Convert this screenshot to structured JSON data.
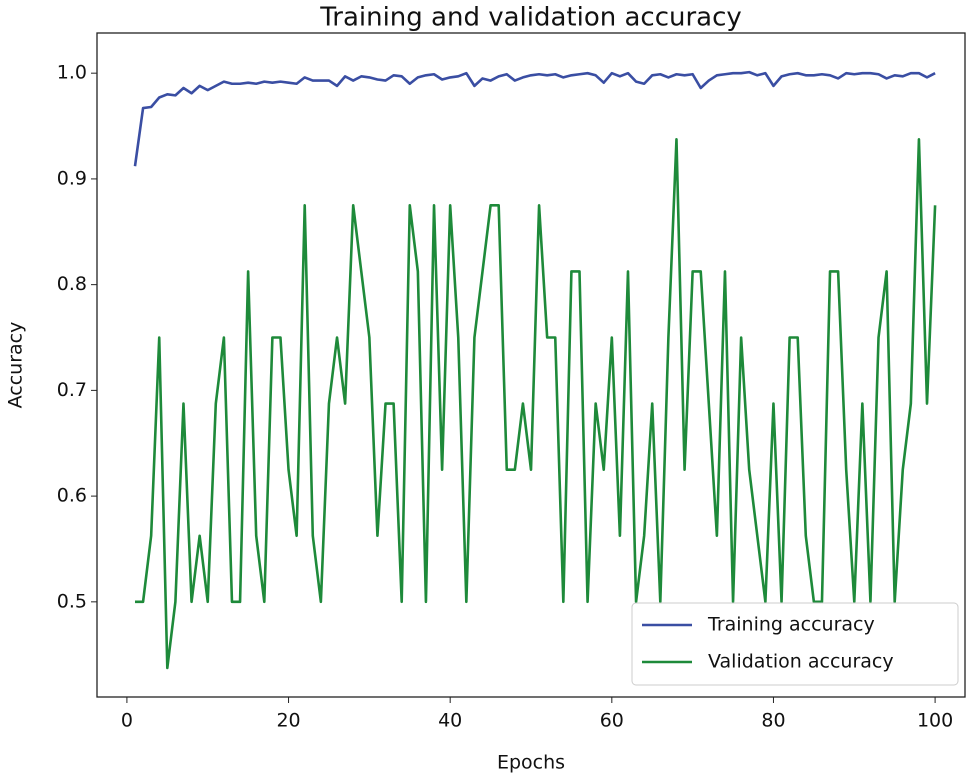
{
  "chart_data": {
    "type": "line",
    "title": "Training and validation accuracy",
    "x_label": "Epochs",
    "y_label": "Accuracy",
    "x": [
      1,
      2,
      3,
      4,
      5,
      6,
      7,
      8,
      9,
      10,
      11,
      12,
      13,
      14,
      15,
      16,
      17,
      18,
      19,
      20,
      21,
      22,
      23,
      24,
      25,
      26,
      27,
      28,
      29,
      30,
      31,
      32,
      33,
      34,
      35,
      36,
      37,
      38,
      39,
      40,
      41,
      42,
      43,
      44,
      45,
      46,
      47,
      48,
      49,
      50,
      51,
      52,
      53,
      54,
      55,
      56,
      57,
      58,
      59,
      60,
      61,
      62,
      63,
      64,
      65,
      66,
      67,
      68,
      69,
      70,
      71,
      72,
      73,
      74,
      75,
      76,
      77,
      78,
      79,
      80,
      81,
      82,
      83,
      84,
      85,
      86,
      87,
      88,
      89,
      90,
      91,
      92,
      93,
      94,
      95,
      96,
      97,
      98,
      99,
      100
    ],
    "series": [
      {
        "name": "Training accuracy",
        "color": "#3a4ea3",
        "values": [
          0.912,
          0.967,
          0.968,
          0.977,
          0.98,
          0.979,
          0.986,
          0.981,
          0.988,
          0.984,
          0.988,
          0.992,
          0.99,
          0.99,
          0.991,
          0.99,
          0.992,
          0.991,
          0.992,
          0.991,
          0.99,
          0.996,
          0.993,
          0.993,
          0.993,
          0.988,
          0.997,
          0.993,
          0.997,
          0.996,
          0.994,
          0.993,
          0.998,
          0.997,
          0.99,
          0.996,
          0.998,
          0.999,
          0.994,
          0.996,
          0.997,
          1.0,
          0.988,
          0.995,
          0.993,
          0.997,
          0.999,
          0.993,
          0.996,
          0.998,
          0.999,
          0.998,
          0.999,
          0.996,
          0.998,
          0.999,
          1.0,
          0.998,
          0.991,
          1.0,
          0.997,
          1.0,
          0.992,
          0.99,
          0.998,
          0.999,
          0.996,
          0.999,
          0.998,
          0.999,
          0.986,
          0.993,
          0.998,
          0.999,
          1.0,
          1.0,
          1.001,
          0.998,
          1.0,
          0.988,
          0.997,
          0.999,
          1.0,
          0.998,
          0.998,
          0.999,
          0.998,
          0.995,
          1.0,
          0.999,
          1.0,
          1.0,
          0.999,
          0.995,
          0.998,
          0.997,
          1.0,
          1.0,
          0.996,
          1.0
        ]
      },
      {
        "name": "Validation accuracy",
        "color": "#1e8a3a",
        "values": [
          0.5,
          0.5,
          0.5625,
          0.75,
          0.4375,
          0.5,
          0.6875,
          0.5,
          0.5625,
          0.5,
          0.6875,
          0.75,
          0.5,
          0.5,
          0.8125,
          0.5625,
          0.5,
          0.75,
          0.75,
          0.625,
          0.5625,
          0.875,
          0.5625,
          0.5,
          0.6875,
          0.75,
          0.6875,
          0.875,
          0.8125,
          0.75,
          0.5625,
          0.6875,
          0.6875,
          0.5,
          0.875,
          0.8125,
          0.5,
          0.875,
          0.625,
          0.875,
          0.75,
          0.5,
          0.75,
          0.8125,
          0.875,
          0.875,
          0.625,
          0.625,
          0.6875,
          0.625,
          0.875,
          0.75,
          0.75,
          0.5,
          0.8125,
          0.8125,
          0.5,
          0.6875,
          0.625,
          0.75,
          0.5625,
          0.8125,
          0.5,
          0.5625,
          0.6875,
          0.5,
          0.75,
          0.9375,
          0.625,
          0.8125,
          0.8125,
          0.6875,
          0.5625,
          0.8125,
          0.5,
          0.75,
          0.625,
          0.5625,
          0.5,
          0.6875,
          0.5,
          0.75,
          0.75,
          0.5625,
          0.5,
          0.5,
          0.8125,
          0.8125,
          0.625,
          0.5,
          0.6875,
          0.5,
          0.75,
          0.8125,
          0.5,
          0.625,
          0.6875,
          0.9375,
          0.6875,
          0.875
        ]
      }
    ],
    "xlim": [
      -3.7,
      103.7
    ],
    "ylim": [
      0.41,
      1.038
    ],
    "xticks": [
      0,
      20,
      40,
      60,
      80,
      100
    ],
    "yticks": [
      0.5,
      0.6,
      0.7,
      0.8,
      0.9,
      {
        "value": 1,
        "label": "1.0"
      }
    ],
    "legend": "lower right"
  }
}
